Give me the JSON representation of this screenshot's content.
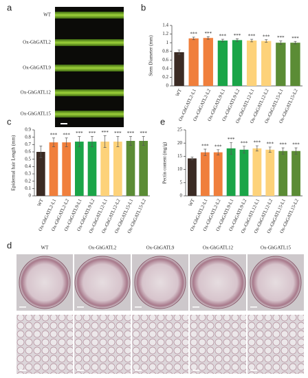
{
  "panel_a": {
    "label": "a",
    "rows": [
      "WT",
      "Ox-GhGATL2",
      "Ox-GhGATL9",
      "Ox-GhGATL12",
      "Ox-GhGATL15"
    ]
  },
  "panel_d": {
    "label": "d",
    "columns": [
      "WT",
      "Ox-GhGATL2",
      "Ox-GhGATL9",
      "Ox-GhGATL12",
      "Ox-GhGATL15"
    ]
  },
  "chart_data": [
    {
      "type": "bar",
      "panel_label": "b",
      "y_label": "Stem Diameter (mm)",
      "categories": [
        "WT",
        "Ox-GhGATL2-L1",
        "Ox-GhGATL2-L2",
        "Ox-GhGATL9-L1",
        "Ox-GhGATL9-L2",
        "Ox-GhGATL12-L1",
        "Ox-GhGATL12-L2",
        "Ox-GhGATL15-L1",
        "Ox-GhGATL15-L2"
      ],
      "values": [
        0.78,
        1.1,
        1.11,
        1.05,
        1.06,
        1.05,
        1.04,
        1.0,
        1.0
      ],
      "errors": [
        0.05,
        0.03,
        0.03,
        0.03,
        0.03,
        0.03,
        0.03,
        0.04,
        0.03
      ],
      "significance": [
        null,
        "***",
        "***",
        "***",
        "***",
        "***",
        "***",
        "***",
        "***"
      ],
      "colors": [
        "#3b2b24",
        "#f07f3c",
        "#f07f3c",
        "#1aa548",
        "#1aa548",
        "#fdd27a",
        "#fdd27a",
        "#5b8c35",
        "#5b8c35"
      ],
      "ylim": [
        0,
        1.4
      ],
      "yticks": [
        0,
        0.2,
        0.4,
        0.6,
        0.8,
        1,
        1.2,
        1.4
      ]
    },
    {
      "type": "bar",
      "panel_label": "c",
      "y_label": "Epidermal hair Length (mm)",
      "categories": [
        "WT",
        "Ox-GhGATL2-L1",
        "Ox-GhGATL2-L2",
        "Ox-GhGATL9-L1",
        "Ox-GhGATL9-L2",
        "Ox-GhGATL12-L1",
        "Ox-GhGATL12-L2",
        "Ox-GhGATL15-L1",
        "Ox-GhGATL15-L2"
      ],
      "values": [
        0.6,
        0.73,
        0.73,
        0.74,
        0.74,
        0.74,
        0.74,
        0.75,
        0.75
      ],
      "errors": [
        0.08,
        0.06,
        0.06,
        0.07,
        0.07,
        0.08,
        0.07,
        0.06,
        0.06
      ],
      "significance": [
        null,
        "***",
        "***",
        "***",
        "***",
        "***",
        "***",
        "***",
        "***"
      ],
      "colors": [
        "#3b2b24",
        "#f07f3c",
        "#f07f3c",
        "#1aa548",
        "#1aa548",
        "#fdd27a",
        "#fdd27a",
        "#5b8c35",
        "#5b8c35"
      ],
      "ylim": [
        0,
        0.9
      ],
      "yticks": [
        0,
        0.1,
        0.2,
        0.3,
        0.4,
        0.5,
        0.6,
        0.7,
        0.8,
        0.9
      ]
    },
    {
      "type": "bar",
      "panel_label": "e",
      "y_label": "Pectin content (mg/g)",
      "categories": [
        "WT",
        "Ox-GhGATL2-L1",
        "Ox-GhGATL2-L2",
        "Ox-GhGATL9-L1",
        "Ox-GhGATL9-L2",
        "Ox-GhGATL12-L1",
        "Ox-GhGATL12-L2",
        "Ox-GhGATL15-L1",
        "Ox-GhGATL15-L2"
      ],
      "values": [
        14.2,
        16.5,
        16.5,
        18,
        17.5,
        18,
        17.5,
        17,
        17
      ],
      "errors": [
        0.5,
        1.2,
        1,
        2.2,
        1.3,
        1,
        1,
        1.2,
        1.2
      ],
      "significance": [
        null,
        "***",
        "***",
        "***",
        "***",
        "***",
        "***",
        "***",
        "***"
      ],
      "colors": [
        "#3b2b24",
        "#f07f3c",
        "#f07f3c",
        "#1aa548",
        "#1aa548",
        "#fdd27a",
        "#fdd27a",
        "#5b8c35",
        "#5b8c35"
      ],
      "ylim": [
        0,
        25
      ],
      "yticks": [
        0,
        5,
        10,
        15,
        20,
        25
      ]
    }
  ]
}
